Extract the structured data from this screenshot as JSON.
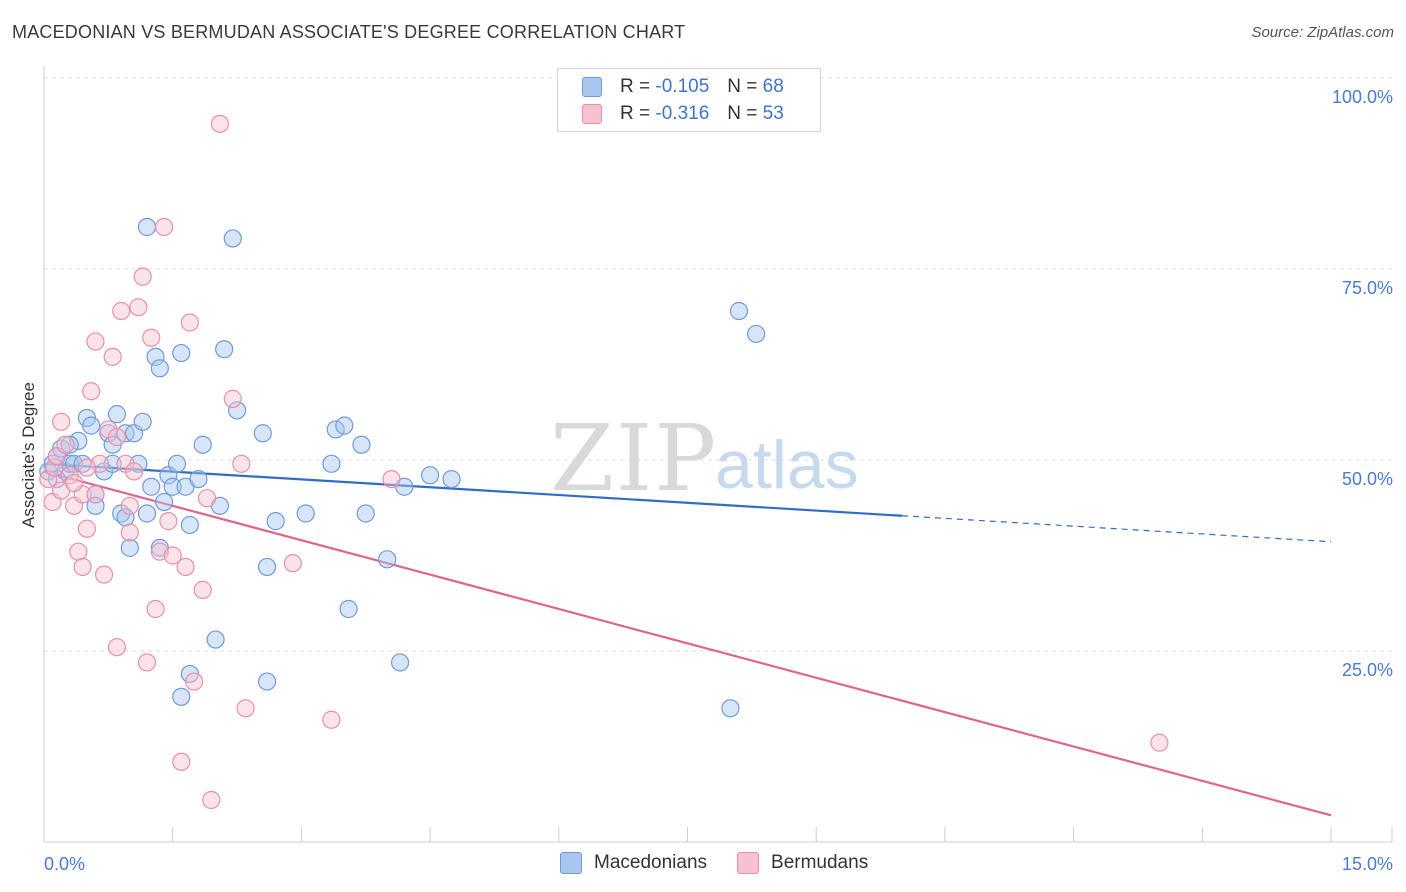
{
  "title": "MACEDONIAN VS BERMUDAN ASSOCIATE'S DEGREE CORRELATION CHART",
  "source": "Source: ZipAtlas.com",
  "watermark": {
    "part1": "ZIP",
    "part2": "atlas"
  },
  "legend": {
    "rows": [
      {
        "r_label": "R =",
        "r_value": "-0.105",
        "n_label": "N =",
        "n_value": "68",
        "color": "#a9c6ef",
        "border": "#6f9bdb"
      },
      {
        "r_label": "R =",
        "r_value": "-0.316",
        "n_label": "N =",
        "n_value": "53",
        "color": "#f7c1d0",
        "border": "#ea8fab"
      }
    ]
  },
  "bottom_legend": [
    {
      "label": "Macedonians",
      "color": "#a9c6ef",
      "border": "#6f9bdb"
    },
    {
      "label": "Bermudans",
      "color": "#f7c1d0",
      "border": "#ea8fab"
    }
  ],
  "chart_data": {
    "type": "scatter",
    "xlabel": "",
    "ylabel": "Associate's Degree",
    "xlim": [
      0,
      15
    ],
    "ylim": [
      0,
      100
    ],
    "x_tick_labels": [
      {
        "v": 0,
        "label": "0.0%"
      },
      {
        "v": 15,
        "label": "15.0%"
      }
    ],
    "y_tick_labels": [
      {
        "v": 25,
        "label": "25.0%"
      },
      {
        "v": 50,
        "label": "50.0%"
      },
      {
        "v": 75,
        "label": "75.0%"
      },
      {
        "v": 100,
        "label": "100.0%"
      }
    ],
    "series": [
      {
        "name": "Macedonians",
        "color": "#6f9bdb",
        "fill": "#a9c6ef",
        "trend": {
          "x0": 0,
          "y0": 49.5,
          "x1": 10,
          "y1": 42.7,
          "dash_to_x": 15,
          "dash_to_y": 39.3,
          "color": "#2f6ccc"
        },
        "points": [
          [
            0.05,
            48.5
          ],
          [
            0.1,
            49.5
          ],
          [
            0.15,
            50.5
          ],
          [
            0.2,
            51.5
          ],
          [
            0.25,
            48.5
          ],
          [
            0.3,
            49.5
          ],
          [
            0.35,
            49.5
          ],
          [
            0.4,
            52.5
          ],
          [
            0.45,
            49.5
          ],
          [
            0.5,
            55.5
          ],
          [
            0.55,
            54.5
          ],
          [
            0.6,
            45.5
          ],
          [
            0.6,
            44.0
          ],
          [
            0.7,
            48.5
          ],
          [
            0.75,
            53.5
          ],
          [
            0.8,
            49.5
          ],
          [
            0.8,
            52.0
          ],
          [
            0.85,
            56.0
          ],
          [
            0.9,
            43.0
          ],
          [
            0.95,
            53.5
          ],
          [
            0.95,
            42.5
          ],
          [
            1.0,
            38.5
          ],
          [
            1.05,
            53.5
          ],
          [
            1.1,
            49.5
          ],
          [
            1.15,
            55.0
          ],
          [
            1.2,
            43.0
          ],
          [
            1.2,
            80.5
          ],
          [
            1.25,
            46.5
          ],
          [
            1.3,
            63.5
          ],
          [
            1.35,
            38.5
          ],
          [
            1.35,
            62.0
          ],
          [
            1.4,
            44.5
          ],
          [
            1.45,
            48.0
          ],
          [
            1.5,
            46.5
          ],
          [
            1.55,
            49.5
          ],
          [
            1.6,
            64.0
          ],
          [
            1.6,
            19.0
          ],
          [
            1.65,
            46.5
          ],
          [
            1.7,
            22.0
          ],
          [
            1.7,
            41.5
          ],
          [
            1.8,
            47.5
          ],
          [
            1.85,
            52.0
          ],
          [
            2.0,
            26.5
          ],
          [
            2.05,
            44.0
          ],
          [
            2.1,
            64.5
          ],
          [
            2.2,
            79.0
          ],
          [
            2.25,
            56.5
          ],
          [
            2.55,
            53.5
          ],
          [
            2.6,
            36.0
          ],
          [
            2.6,
            21.0
          ],
          [
            2.7,
            42.0
          ],
          [
            3.05,
            43.0
          ],
          [
            3.35,
            49.5
          ],
          [
            3.4,
            54.0
          ],
          [
            3.5,
            54.5
          ],
          [
            3.55,
            30.5
          ],
          [
            3.7,
            52.0
          ],
          [
            3.75,
            43.0
          ],
          [
            4.0,
            37.0
          ],
          [
            4.15,
            23.5
          ],
          [
            4.2,
            46.5
          ],
          [
            4.5,
            48.0
          ],
          [
            4.75,
            47.5
          ],
          [
            8.0,
            17.5
          ],
          [
            8.1,
            69.5
          ],
          [
            8.3,
            66.5
          ],
          [
            0.15,
            47.5
          ],
          [
            0.3,
            52.0
          ]
        ]
      },
      {
        "name": "Bermudans",
        "color": "#ea8fab",
        "fill": "#f7c1d0",
        "trend": {
          "x0": 0,
          "y0": 48.5,
          "x1": 15,
          "y1": 3.5,
          "color": "#e0648e"
        },
        "points": [
          [
            0.05,
            47.5
          ],
          [
            0.1,
            44.5
          ],
          [
            0.12,
            49.0
          ],
          [
            0.15,
            50.5
          ],
          [
            0.2,
            46.0
          ],
          [
            0.25,
            52.0
          ],
          [
            0.3,
            48.0
          ],
          [
            0.35,
            44.0
          ],
          [
            0.4,
            38.0
          ],
          [
            0.45,
            45.5
          ],
          [
            0.45,
            36.0
          ],
          [
            0.5,
            41.0
          ],
          [
            0.55,
            59.0
          ],
          [
            0.6,
            65.5
          ],
          [
            0.65,
            49.5
          ],
          [
            0.7,
            35.0
          ],
          [
            0.75,
            54.0
          ],
          [
            0.8,
            63.5
          ],
          [
            0.85,
            25.5
          ],
          [
            0.9,
            69.5
          ],
          [
            0.95,
            49.5
          ],
          [
            1.0,
            40.5
          ],
          [
            1.05,
            48.5
          ],
          [
            1.1,
            70.0
          ],
          [
            1.15,
            74.0
          ],
          [
            1.2,
            23.5
          ],
          [
            1.25,
            66.0
          ],
          [
            1.3,
            30.5
          ],
          [
            1.35,
            38.0
          ],
          [
            1.4,
            80.5
          ],
          [
            1.45,
            42.0
          ],
          [
            1.5,
            37.5
          ],
          [
            1.6,
            10.5
          ],
          [
            1.65,
            36.0
          ],
          [
            1.7,
            68.0
          ],
          [
            1.75,
            21.0
          ],
          [
            1.85,
            33.0
          ],
          [
            1.9,
            45.0
          ],
          [
            1.95,
            5.5
          ],
          [
            2.05,
            94.0
          ],
          [
            2.2,
            58.0
          ],
          [
            2.35,
            17.5
          ],
          [
            2.3,
            49.5
          ],
          [
            2.9,
            36.5
          ],
          [
            3.35,
            16.0
          ],
          [
            4.05,
            47.5
          ],
          [
            13.0,
            13.0
          ],
          [
            0.2,
            55.0
          ],
          [
            0.35,
            47.0
          ],
          [
            0.5,
            49.0
          ],
          [
            0.6,
            45.5
          ],
          [
            0.85,
            53.0
          ],
          [
            1.0,
            44.0
          ]
        ]
      }
    ]
  }
}
